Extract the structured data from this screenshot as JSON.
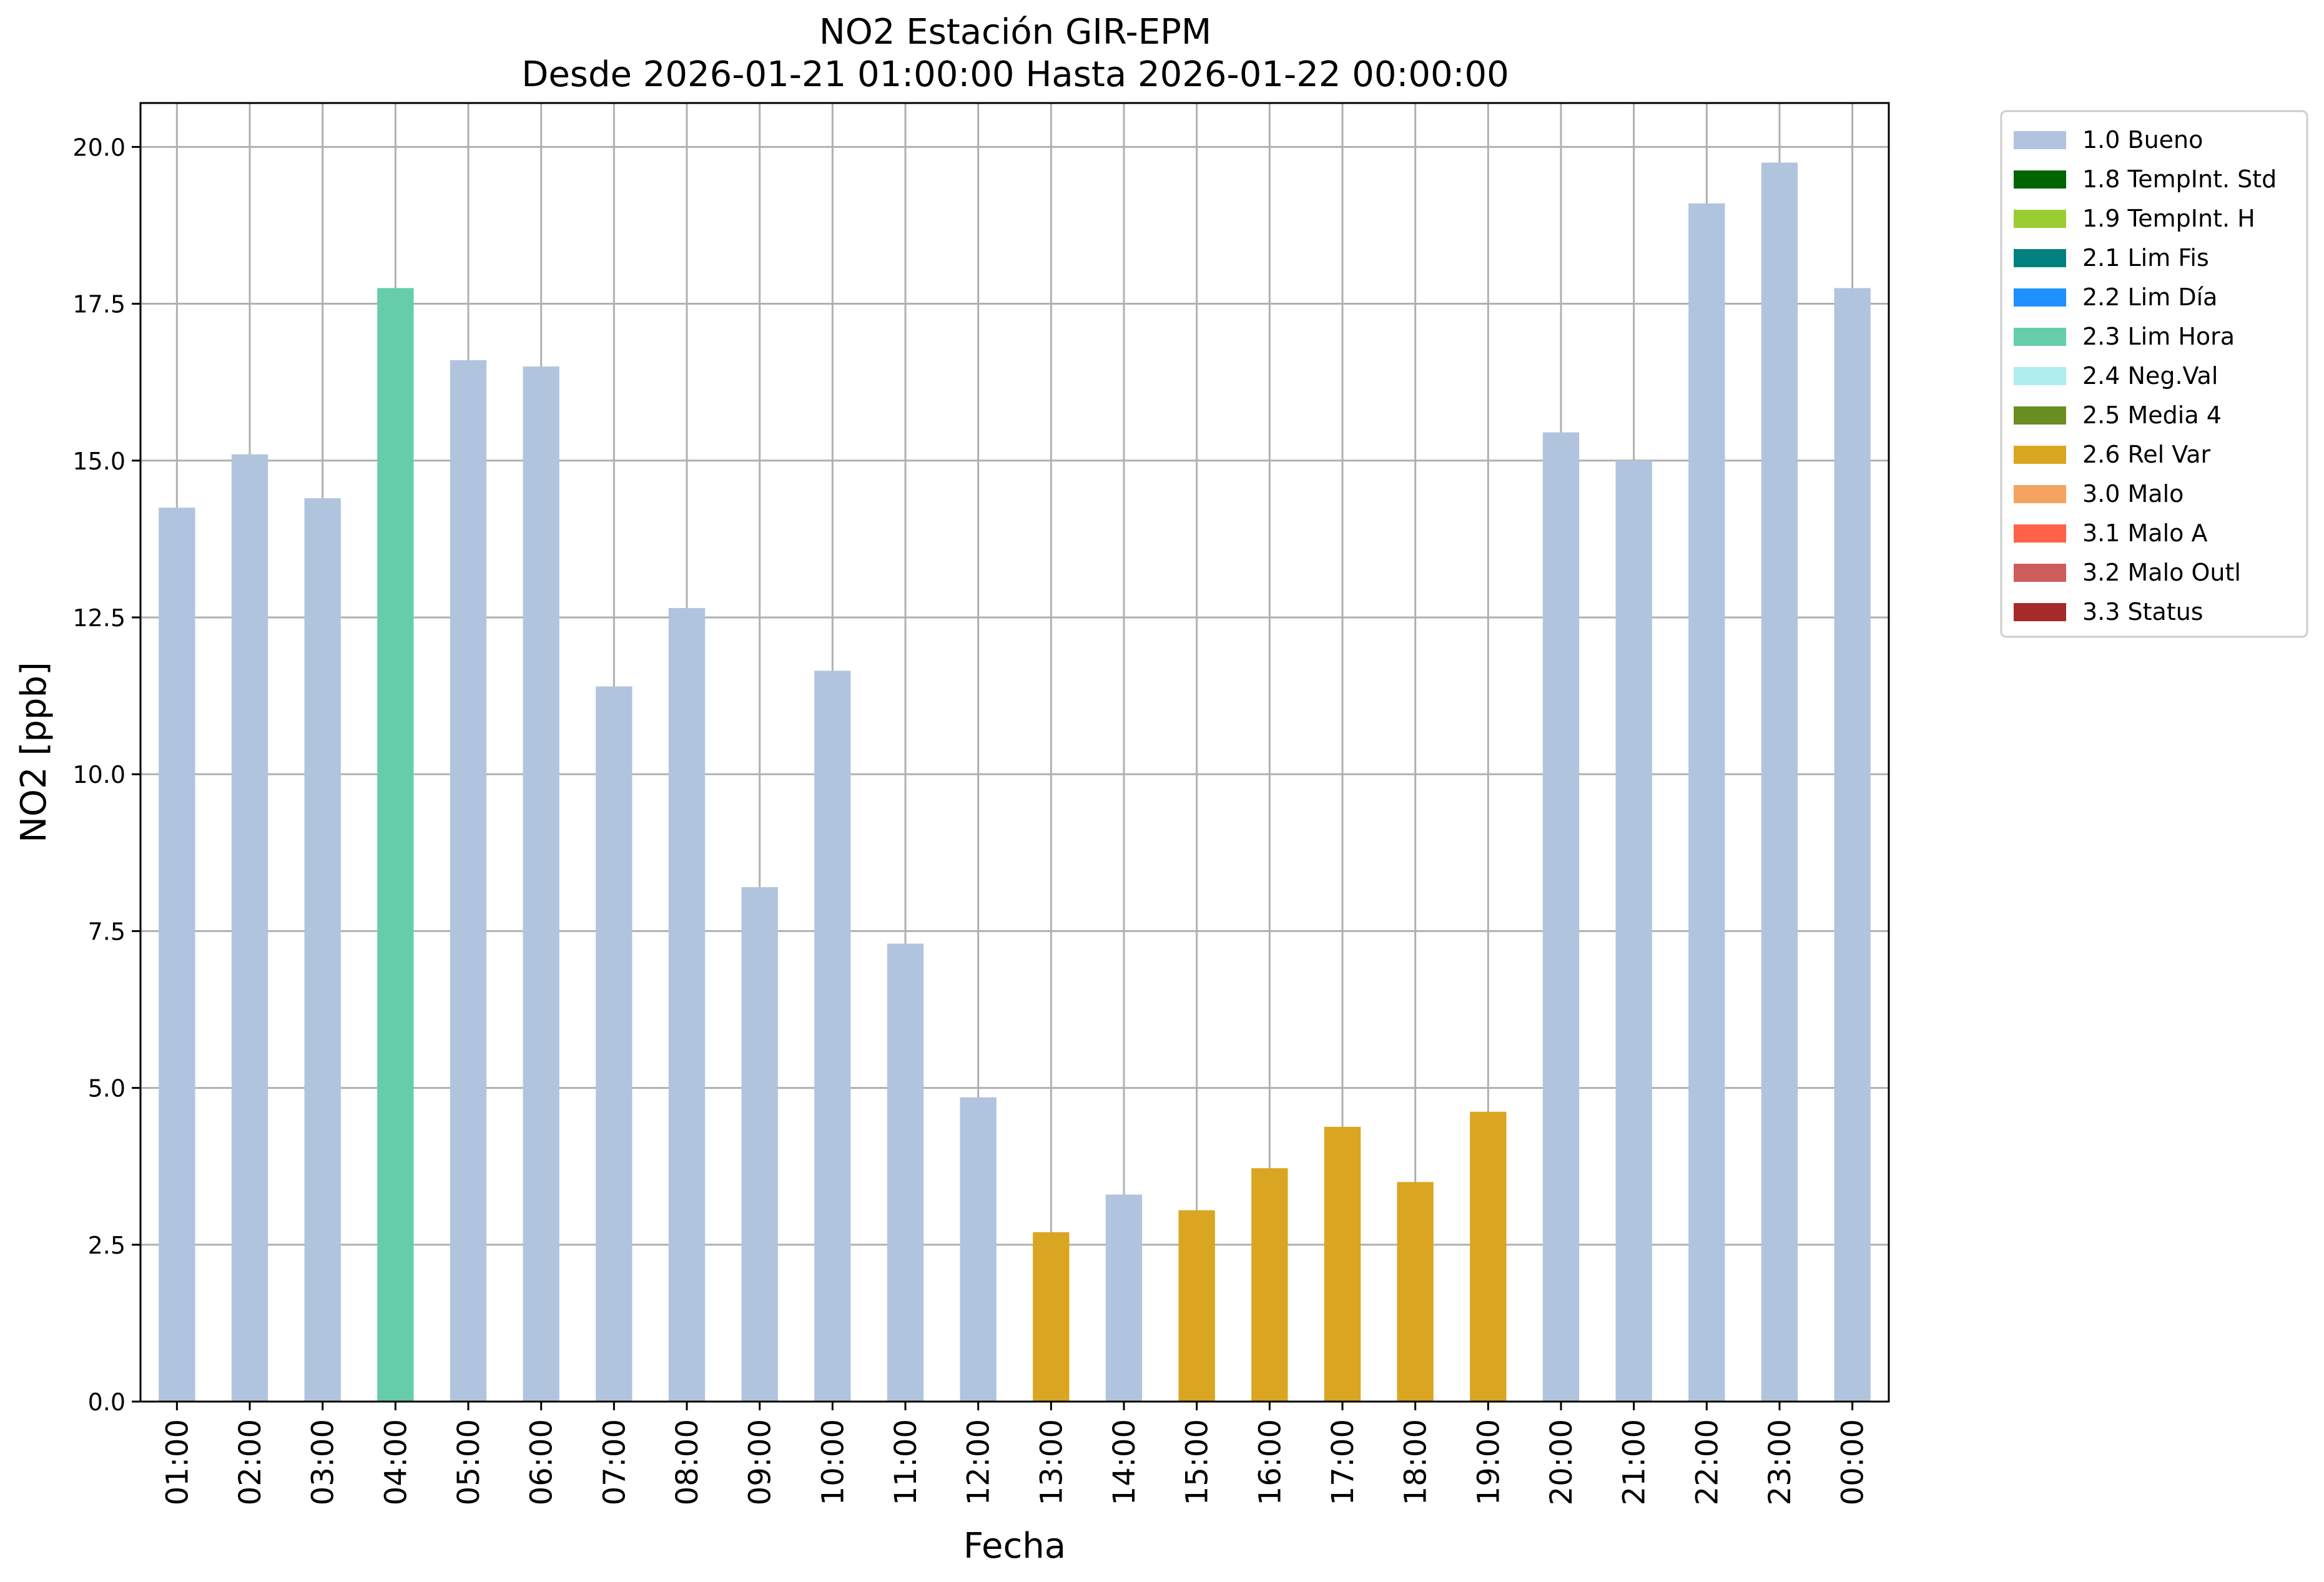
{
  "chart_data": {
    "type": "bar",
    "title": "NO2 Estación GIR-EPM",
    "subtitle": "Desde 2026-01-21 01:00:00 Hasta 2026-01-22 00:00:00",
    "xlabel": "Fecha",
    "ylabel": "NO2 [ppb]",
    "ylim": [
      0,
      20.7
    ],
    "yticks": [
      "0.0",
      "2.5",
      "5.0",
      "7.5",
      "10.0",
      "12.5",
      "15.0",
      "17.5",
      "20.0"
    ],
    "grid": true,
    "legend_position": "outside-top-right",
    "categories": [
      "01:00",
      "02:00",
      "03:00",
      "04:00",
      "05:00",
      "06:00",
      "07:00",
      "08:00",
      "09:00",
      "10:00",
      "11:00",
      "12:00",
      "13:00",
      "14:00",
      "15:00",
      "16:00",
      "17:00",
      "18:00",
      "19:00",
      "20:00",
      "21:00",
      "22:00",
      "23:00",
      "00:00"
    ],
    "values": [
      14.25,
      15.1,
      14.4,
      17.75,
      16.6,
      16.5,
      11.4,
      12.65,
      8.2,
      11.65,
      7.3,
      4.85,
      2.7,
      3.3,
      3.05,
      3.72,
      4.38,
      3.5,
      4.62,
      15.45,
      15.0,
      19.1,
      19.75,
      17.75
    ],
    "flags": [
      "1.0 Bueno",
      "1.0 Bueno",
      "1.0 Bueno",
      "2.3 Lim Hora",
      "1.0 Bueno",
      "1.0 Bueno",
      "1.0 Bueno",
      "1.0 Bueno",
      "1.0 Bueno",
      "1.0 Bueno",
      "1.0 Bueno",
      "1.0 Bueno",
      "2.6 Rel Var",
      "1.0 Bueno",
      "2.6 Rel Var",
      "2.6 Rel Var",
      "2.6 Rel Var",
      "2.6 Rel Var",
      "2.6 Rel Var",
      "1.0 Bueno",
      "1.0 Bueno",
      "1.0 Bueno",
      "1.0 Bueno",
      "1.0 Bueno"
    ],
    "legend": [
      {
        "label": "1.0 Bueno",
        "color": "#b0c4de"
      },
      {
        "label": "1.8 TempInt. Std",
        "color": "#006400"
      },
      {
        "label": "1.9 TempInt. H",
        "color": "#9acd32"
      },
      {
        "label": "2.1 Lim Fis",
        "color": "#008080"
      },
      {
        "label": "2.2 Lim Día",
        "color": "#1e90ff"
      },
      {
        "label": "2.3 Lim Hora",
        "color": "#66cdaa"
      },
      {
        "label": "2.4 Neg.Val",
        "color": "#afeeee"
      },
      {
        "label": "2.5 Media 4",
        "color": "#6b8e23"
      },
      {
        "label": "2.6 Rel Var",
        "color": "#daa520"
      },
      {
        "label": "3.0 Malo",
        "color": "#f4a460"
      },
      {
        "label": "3.1 Malo A",
        "color": "#ff6347"
      },
      {
        "label": "3.2 Malo Outl",
        "color": "#cd5c5c"
      },
      {
        "label": "3.3 Status",
        "color": "#a52a2a"
      }
    ]
  }
}
